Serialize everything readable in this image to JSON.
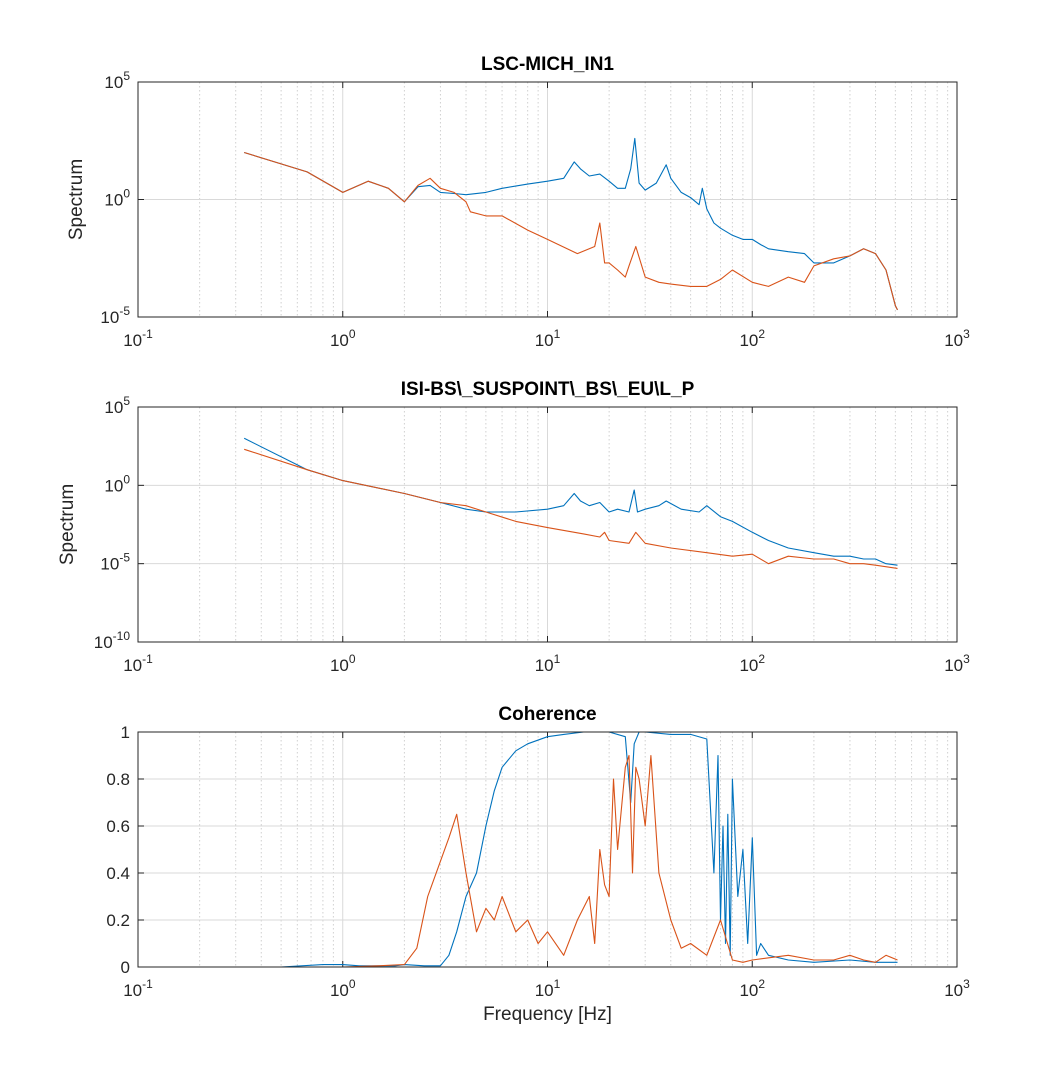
{
  "colors": {
    "series_blue": "#0072BD",
    "series_orange": "#D95319",
    "axis": "#262626",
    "grid": "#d9d9d9"
  },
  "chart_data": [
    {
      "type": "line",
      "title": "LSC-MICH_IN1",
      "xlabel": "",
      "ylabel": "Spectrum",
      "xscale": "log",
      "yscale": "log",
      "xlim": [
        0.1,
        1000
      ],
      "ylim": [
        1e-05,
        100000
      ],
      "xticks": [
        {
          "base": "10",
          "exp": "-1"
        },
        {
          "base": "10",
          "exp": "0"
        },
        {
          "base": "10",
          "exp": "1"
        },
        {
          "base": "10",
          "exp": "2"
        },
        {
          "base": "10",
          "exp": "3"
        }
      ],
      "yticks": [
        {
          "base": "10",
          "exp": "-5"
        },
        {
          "base": "10",
          "exp": "0"
        },
        {
          "base": "10",
          "exp": "5"
        }
      ],
      "grid": true,
      "series": [
        {
          "x": [
            0.33,
            0.67,
            1.0,
            1.33,
            1.67,
            2.0,
            2.33,
            2.67,
            3.0,
            3.5,
            4.0,
            5.0,
            6.0,
            8.0,
            10.0,
            12.0,
            13.5,
            14.5,
            16.0,
            18.0,
            20.0,
            22.0,
            24.0,
            25.5,
            26.7,
            28.0,
            30.0,
            34.0,
            38.0,
            40.0,
            45.0,
            50.0,
            55.0,
            57.0,
            60.0,
            65.0,
            70.0,
            80.0,
            90.0,
            100.0,
            110.0,
            120.0,
            150.0,
            180.0,
            200.0,
            250.0,
            300.0,
            350.0,
            400.0,
            450.0,
            500.0,
            512.0
          ],
          "values": [
            100,
            15,
            2,
            6,
            3,
            0.8,
            3.5,
            4,
            2,
            1.8,
            1.6,
            2,
            3,
            4.5,
            6,
            8,
            40,
            20,
            10,
            12,
            6,
            3,
            3,
            20,
            400,
            5,
            2.5,
            5,
            30,
            8,
            2,
            1.2,
            0.6,
            3,
            0.4,
            0.1,
            0.06,
            0.03,
            0.02,
            0.02,
            0.012,
            0.008,
            0.006,
            0.005,
            0.002,
            0.002,
            0.004,
            0.008,
            0.005,
            0.001,
            3e-05,
            2e-05
          ]
        },
        {
          "x": [
            0.33,
            0.67,
            1.0,
            1.33,
            1.67,
            2.0,
            2.33,
            2.67,
            3.0,
            3.5,
            4.0,
            4.2,
            5.0,
            6.0,
            8.0,
            10.0,
            14.0,
            17.0,
            18.0,
            19.0,
            20.0,
            22.0,
            24.0,
            25.0,
            27.0,
            30.0,
            35.0,
            40.0,
            50.0,
            60.0,
            70.0,
            80.0,
            100.0,
            120.0,
            150.0,
            180.0,
            200.0,
            250.0,
            300.0,
            350.0,
            400.0,
            450.0,
            500.0,
            512.0
          ],
          "values": [
            100,
            15,
            2,
            6,
            3,
            0.8,
            4,
            8,
            3,
            2,
            0.8,
            0.3,
            0.2,
            0.2,
            0.05,
            0.02,
            0.005,
            0.01,
            0.1,
            0.002,
            0.002,
            0.001,
            0.0005,
            0.0015,
            0.01,
            0.0005,
            0.0003,
            0.00025,
            0.0002,
            0.0002,
            0.0004,
            0.001,
            0.0003,
            0.0002,
            0.0005,
            0.0003,
            0.0015,
            0.003,
            0.004,
            0.008,
            0.005,
            0.001,
            3e-05,
            2e-05
          ]
        }
      ]
    },
    {
      "type": "line",
      "title": "ISI-BS\\_SUSPOINT\\_BS\\_EU\\L_P",
      "xlabel": "",
      "ylabel": "Spectrum",
      "xscale": "log",
      "yscale": "log",
      "xlim": [
        0.1,
        1000
      ],
      "ylim": [
        1e-10,
        100000
      ],
      "xticks": [
        {
          "base": "10",
          "exp": "-1"
        },
        {
          "base": "10",
          "exp": "0"
        },
        {
          "base": "10",
          "exp": "1"
        },
        {
          "base": "10",
          "exp": "2"
        },
        {
          "base": "10",
          "exp": "3"
        }
      ],
      "yticks": [
        {
          "base": "10",
          "exp": "-10"
        },
        {
          "base": "10",
          "exp": "-5"
        },
        {
          "base": "10",
          "exp": "0"
        },
        {
          "base": "10",
          "exp": "5"
        }
      ],
      "grid": true,
      "series": [
        {
          "x": [
            0.33,
            0.67,
            1.0,
            2.0,
            3.0,
            4.0,
            5.0,
            7.0,
            10.0,
            12.0,
            13.5,
            14.5,
            16.0,
            18.0,
            20.0,
            22.0,
            25.0,
            26.5,
            27.5,
            30.0,
            35.0,
            38.0,
            45.0,
            55.0,
            60.0,
            70.0,
            80.0,
            100.0,
            120.0,
            150.0,
            200.0,
            250.0,
            300.0,
            350.0,
            400.0,
            450.0,
            512.0
          ],
          "values": [
            1000,
            10,
            2,
            0.3,
            0.08,
            0.03,
            0.02,
            0.02,
            0.03,
            0.05,
            0.3,
            0.1,
            0.05,
            0.08,
            0.02,
            0.03,
            0.02,
            0.5,
            0.02,
            0.03,
            0.05,
            0.1,
            0.03,
            0.02,
            0.05,
            0.01,
            0.005,
            0.001,
            0.0003,
            0.0001,
            5e-05,
            3e-05,
            3e-05,
            2e-05,
            2e-05,
            1e-05,
            8e-06
          ]
        },
        {
          "x": [
            0.33,
            0.67,
            1.0,
            2.0,
            3.0,
            4.0,
            5.0,
            7.0,
            10.0,
            15.0,
            18.0,
            19.0,
            20.0,
            25.0,
            27.0,
            30.0,
            40.0,
            60.0,
            80.0,
            100.0,
            120.0,
            150.0,
            200.0,
            250.0,
            300.0,
            350.0,
            400.0,
            512.0
          ],
          "values": [
            200,
            10,
            2,
            0.3,
            0.08,
            0.05,
            0.02,
            0.005,
            0.002,
            0.0008,
            0.0005,
            0.001,
            0.0003,
            0.0002,
            0.001,
            0.0002,
            0.0001,
            5e-05,
            3e-05,
            4e-05,
            1e-05,
            3e-05,
            2e-05,
            2e-05,
            1e-05,
            1e-05,
            8e-06,
            5e-06
          ]
        }
      ]
    },
    {
      "type": "line",
      "title": "Coherence",
      "xlabel": "Frequency [Hz]",
      "ylabel": "",
      "xscale": "log",
      "yscale": "linear",
      "xlim": [
        0.1,
        1000
      ],
      "ylim": [
        0,
        1
      ],
      "xticks": [
        {
          "base": "10",
          "exp": "-1"
        },
        {
          "base": "10",
          "exp": "0"
        },
        {
          "base": "10",
          "exp": "1"
        },
        {
          "base": "10",
          "exp": "2"
        },
        {
          "base": "10",
          "exp": "3"
        }
      ],
      "yticks": [
        "0",
        "0.2",
        "0.4",
        "0.6",
        "0.8",
        "1"
      ],
      "grid": true,
      "series": [
        {
          "x": [
            0.33,
            0.5,
            0.8,
            1.0,
            1.2,
            1.5,
            1.8,
            2.0,
            2.5,
            3.0,
            3.3,
            3.6,
            4.0,
            4.5,
            5.0,
            5.5,
            6.0,
            7.0,
            8.0,
            10.0,
            12.0,
            15.0,
            20.0,
            24.0,
            25.5,
            26.5,
            28.0,
            30.0,
            40.0,
            50.0,
            60.0,
            65.0,
            68.0,
            70.0,
            72.0,
            74.0,
            76.0,
            78.0,
            80.0,
            85.0,
            90.0,
            95.0,
            100.0,
            105.0,
            110.0,
            120.0,
            150.0,
            200.0,
            300.0,
            400.0,
            512.0
          ],
          "values": [
            0.0,
            0.0,
            0.01,
            0.01,
            0.005,
            0.005,
            0.005,
            0.01,
            0.005,
            0.005,
            0.05,
            0.15,
            0.3,
            0.4,
            0.6,
            0.75,
            0.85,
            0.92,
            0.95,
            0.98,
            0.99,
            1.0,
            1.0,
            0.98,
            0.7,
            0.95,
            1.0,
            1.0,
            0.99,
            0.99,
            0.97,
            0.4,
            0.9,
            0.2,
            0.6,
            0.1,
            0.65,
            0.05,
            0.8,
            0.3,
            0.5,
            0.1,
            0.55,
            0.05,
            0.1,
            0.05,
            0.03,
            0.02,
            0.03,
            0.02,
            0.02
          ]
        },
        {
          "x": [
            0.33,
            0.5,
            1.0,
            1.5,
            2.0,
            2.3,
            2.6,
            3.0,
            3.3,
            3.6,
            4.0,
            4.5,
            5.0,
            5.5,
            6.0,
            7.0,
            8.0,
            9.0,
            10.0,
            12.0,
            14.0,
            16.0,
            17.0,
            18.0,
            19.0,
            20.0,
            21.0,
            22.0,
            24.0,
            25.0,
            26.0,
            27.0,
            28.0,
            30.0,
            32.0,
            35.0,
            40.0,
            45.0,
            50.0,
            60.0,
            70.0,
            80.0,
            90.0,
            100.0,
            150.0,
            200.0,
            250.0,
            300.0,
            350.0,
            400.0,
            450.0,
            512.0
          ],
          "values": [
            0.0,
            0.0,
            0.0,
            0.005,
            0.01,
            0.08,
            0.3,
            0.45,
            0.55,
            0.65,
            0.4,
            0.15,
            0.25,
            0.2,
            0.3,
            0.15,
            0.2,
            0.1,
            0.15,
            0.05,
            0.2,
            0.3,
            0.1,
            0.5,
            0.35,
            0.3,
            0.8,
            0.5,
            0.85,
            0.9,
            0.4,
            0.85,
            0.8,
            0.6,
            0.9,
            0.4,
            0.2,
            0.08,
            0.1,
            0.05,
            0.2,
            0.03,
            0.02,
            0.03,
            0.05,
            0.03,
            0.03,
            0.05,
            0.03,
            0.02,
            0.05,
            0.03
          ]
        }
      ]
    }
  ]
}
